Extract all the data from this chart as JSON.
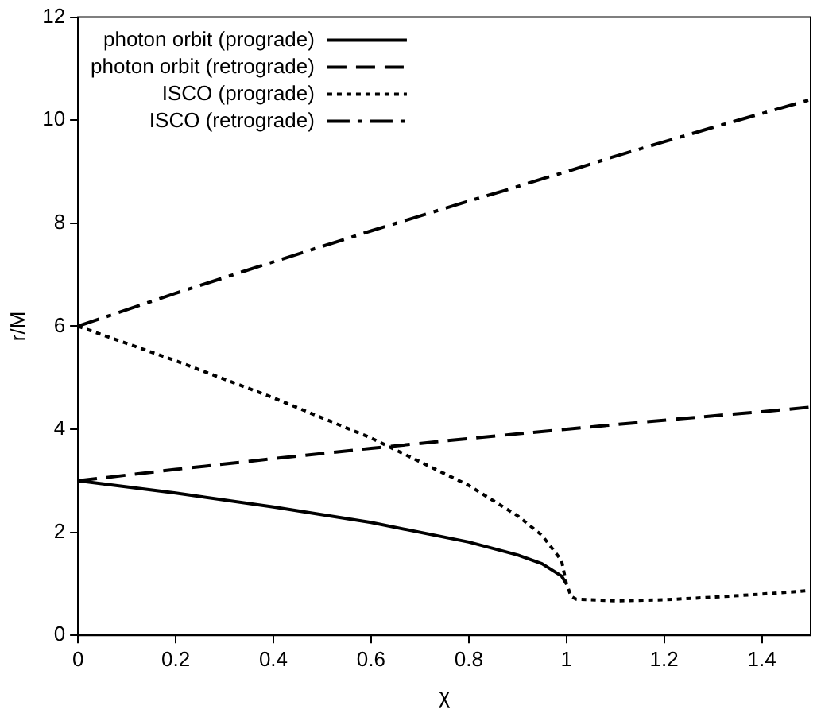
{
  "chart_data": {
    "type": "line",
    "xlabel": "χ",
    "ylabel": "r/M",
    "xlim": [
      0,
      1.5
    ],
    "xticks": [
      0,
      0.2,
      0.4,
      0.6,
      0.8,
      1,
      1.2,
      1.4
    ],
    "ylim": [
      0,
      12
    ],
    "yticks": [
      0,
      2,
      4,
      6,
      8,
      10,
      12
    ],
    "grid": false,
    "legend": "top left",
    "marker": "none",
    "series": [
      {
        "name": "photon orbit (prograde)",
        "color": "#000000",
        "line_style": "solid",
        "x": [
          0,
          0.2,
          0.4,
          0.6,
          0.8,
          0.9,
          0.95,
          0.99,
          1
        ],
        "values": [
          3,
          2.76,
          2.49,
          2.19,
          1.81,
          1.56,
          1.39,
          1.15,
          1
        ]
      },
      {
        "name": "photon orbit (retrograde)",
        "color": "#000000",
        "line_style": "dashed",
        "x": [
          0,
          0.2,
          0.4,
          0.6,
          0.8,
          1,
          1.1,
          1.3,
          1.4,
          1.5
        ],
        "values": [
          3,
          3.22,
          3.43,
          3.63,
          3.82,
          4,
          4.09,
          4.26,
          4.34,
          4.43
        ]
      },
      {
        "name": "ISCO (prograde)",
        "color": "#000000",
        "line_style": "dotted",
        "x": [
          0,
          0.2,
          0.4,
          0.6,
          0.8,
          0.9,
          0.95,
          0.99,
          1,
          1.01,
          1.02,
          1.1,
          1.2,
          1.3,
          1.4,
          1.5
        ],
        "values": [
          6,
          5.33,
          4.61,
          3.83,
          2.91,
          2.32,
          1.94,
          1.45,
          1,
          0.75,
          0.7,
          0.67,
          0.69,
          0.74,
          0.8,
          0.87
        ]
      },
      {
        "name": "ISCO (retrograde)",
        "color": "#000000",
        "line_style": "dashdot",
        "x": [
          0,
          0.2,
          0.4,
          0.6,
          0.8,
          0.9,
          0.95,
          1,
          1.1,
          1.2,
          1.3,
          1.4,
          1.5
        ],
        "values": [
          6,
          6.64,
          7.25,
          7.85,
          8.43,
          8.71,
          8.86,
          9,
          9.3,
          9.58,
          9.86,
          10.13,
          10.4
        ]
      }
    ]
  }
}
